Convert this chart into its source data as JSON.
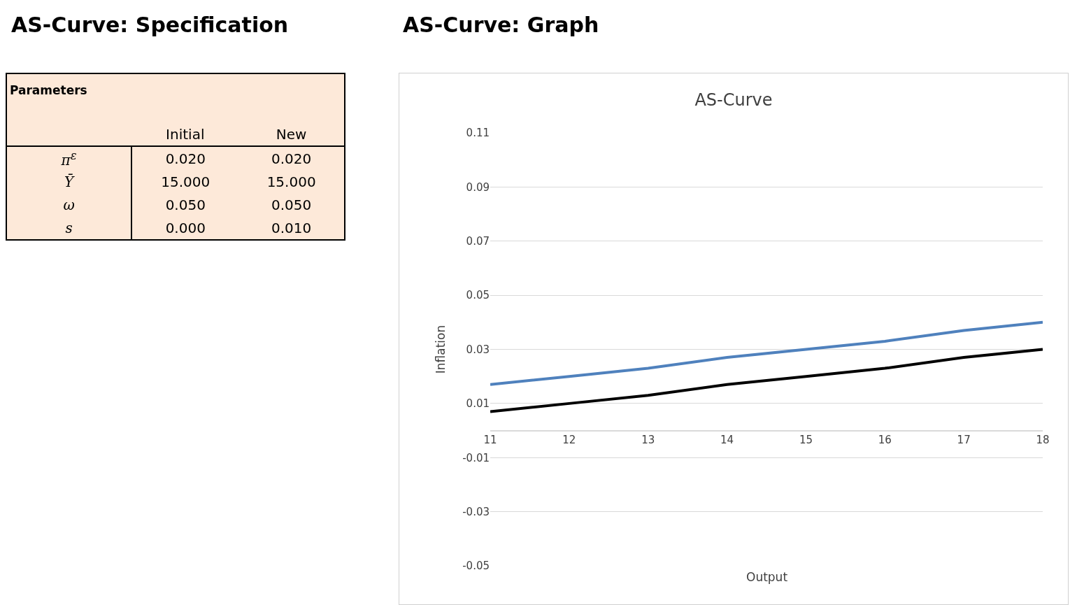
{
  "chart_data": [
    {
      "type": "other",
      "title": "AS-Curve: Specification",
      "subtitle": "Parameters",
      "categories": [
        "Initial",
        "New"
      ],
      "y_categories": [
        "π$^{ε}$",
        "Ȳ",
        "ω",
        "s"
      ],
      "cells": [
        [
          "0.020",
          "0.020"
        ],
        [
          "15.000",
          "15.000"
        ],
        [
          "0.050",
          "0.050"
        ],
        [
          "0.000",
          "0.010"
        ]
      ]
    },
    {
      "type": "line",
      "subtitle": "AS-Curve: Graph",
      "title": "AS-Curve",
      "xlabel": "Output",
      "ylabel": "Inflation",
      "x": [
        11,
        12,
        13,
        14,
        15,
        16,
        17,
        18
      ],
      "series": [
        {
          "color": "#4f81bd",
          "values": [
            0.017,
            0.02,
            0.023,
            0.027,
            0.03,
            0.033,
            0.037,
            0.04
          ]
        },
        {
          "color": "#000000",
          "values": [
            0.007,
            0.01,
            0.013,
            0.017,
            0.02,
            0.023,
            0.027,
            0.03
          ]
        }
      ],
      "xlim": [
        11,
        18
      ],
      "xticks": [
        11,
        12,
        13,
        14,
        15,
        16,
        17,
        18
      ],
      "ylim": [
        -0.05,
        0.11
      ],
      "yticks": [
        {
          "value": -0.05,
          "label": "-0.05"
        },
        {
          "value": -0.03,
          "label": "-0.03"
        },
        {
          "value": -0.01,
          "label": "-0.01"
        },
        {
          "value": 0.01,
          "label": "0.01"
        },
        {
          "value": 0.03,
          "label": "0.03"
        },
        {
          "value": 0.05,
          "label": "0.05"
        },
        {
          "value": 0.07,
          "label": "0.07"
        },
        {
          "value": 0.09,
          "label": "0.09"
        },
        {
          "value": 0.11,
          "label": "0.11"
        }
      ],
      "grid": "y",
      "marker": "none",
      "line_style": "solid"
    }
  ]
}
